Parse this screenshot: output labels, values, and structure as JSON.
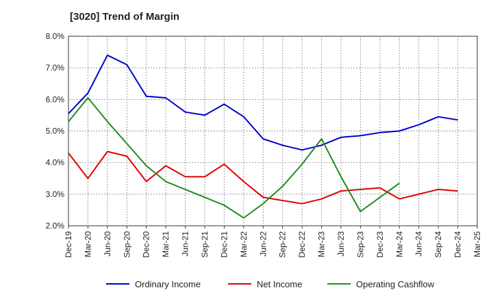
{
  "title": "[3020]  Trend of Margin",
  "chart_data": {
    "type": "line",
    "title": "[3020]  Trend of Margin",
    "x": [
      "Dec-19",
      "Mar-20",
      "Jun-20",
      "Sep-20",
      "Dec-20",
      "Mar-21",
      "Jun-21",
      "Sep-21",
      "Dec-21",
      "Mar-22",
      "Jun-22",
      "Sep-22",
      "Dec-22",
      "Mar-23",
      "Jun-23",
      "Sep-23",
      "Dec-23",
      "Mar-24",
      "Jun-24",
      "Sep-24",
      "Dec-24",
      "Mar-25"
    ],
    "ylim": [
      2.0,
      8.0
    ],
    "yticks": [
      "2.0%",
      "3.0%",
      "4.0%",
      "5.0%",
      "6.0%",
      "7.0%",
      "8.0%"
    ],
    "grid": true,
    "legend_position": "bottom",
    "series": [
      {
        "name": "Ordinary Income",
        "color": "#0000cc",
        "values": [
          5.55,
          6.2,
          7.4,
          7.1,
          6.1,
          6.05,
          5.6,
          5.5,
          5.85,
          5.45,
          4.75,
          4.55,
          4.4,
          4.55,
          4.8,
          4.85,
          4.95,
          5.0,
          5.2,
          5.45,
          5.35,
          null
        ]
      },
      {
        "name": "Net Income",
        "color": "#dd0000",
        "values": [
          4.3,
          3.5,
          4.35,
          4.2,
          3.4,
          3.9,
          3.55,
          3.55,
          3.95,
          3.4,
          2.9,
          2.8,
          2.7,
          2.85,
          3.1,
          3.15,
          3.2,
          2.85,
          3.0,
          3.15,
          3.1,
          null
        ]
      },
      {
        "name": "Operating Cashflow",
        "color": "#228b22",
        "values": [
          5.3,
          6.05,
          5.3,
          4.6,
          3.9,
          3.4,
          3.15,
          2.9,
          2.65,
          2.25,
          2.7,
          3.25,
          3.95,
          4.75,
          3.55,
          2.45,
          2.9,
          3.35,
          null,
          null,
          null,
          null
        ]
      }
    ]
  }
}
